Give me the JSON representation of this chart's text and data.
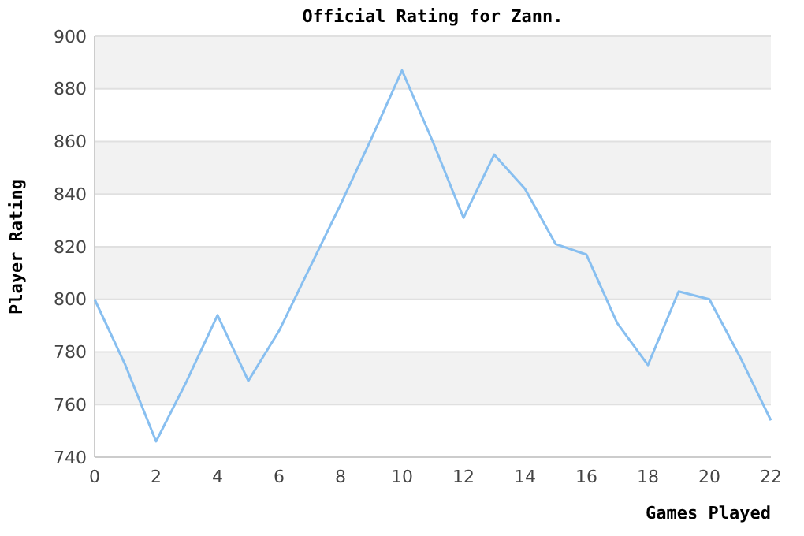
{
  "chart_data": {
    "type": "line",
    "title": "Official Rating for Zann.",
    "xlabel": "Games Played",
    "ylabel": "Player Rating",
    "x": [
      0,
      1,
      2,
      3,
      4,
      5,
      6,
      7,
      8,
      9,
      10,
      11,
      12,
      13,
      14,
      15,
      16,
      17,
      18,
      19,
      20,
      21,
      22
    ],
    "series": [
      {
        "color": "#88bff0",
        "values": [
          800,
          775,
          746,
          769,
          794,
          769,
          788,
          812,
          836,
          861,
          887,
          860,
          831,
          855,
          842,
          821,
          817,
          791,
          775,
          803,
          800,
          778,
          754
        ]
      }
    ],
    "xlim": [
      0,
      22
    ],
    "xticks": [
      0,
      2,
      4,
      6,
      8,
      10,
      12,
      14,
      16,
      18,
      20,
      22
    ],
    "ylim": [
      740,
      900
    ],
    "yticks": [
      740,
      760,
      780,
      800,
      820,
      840,
      860,
      880,
      900
    ],
    "grid": "y",
    "marker": "none",
    "line_style": "solid"
  }
}
